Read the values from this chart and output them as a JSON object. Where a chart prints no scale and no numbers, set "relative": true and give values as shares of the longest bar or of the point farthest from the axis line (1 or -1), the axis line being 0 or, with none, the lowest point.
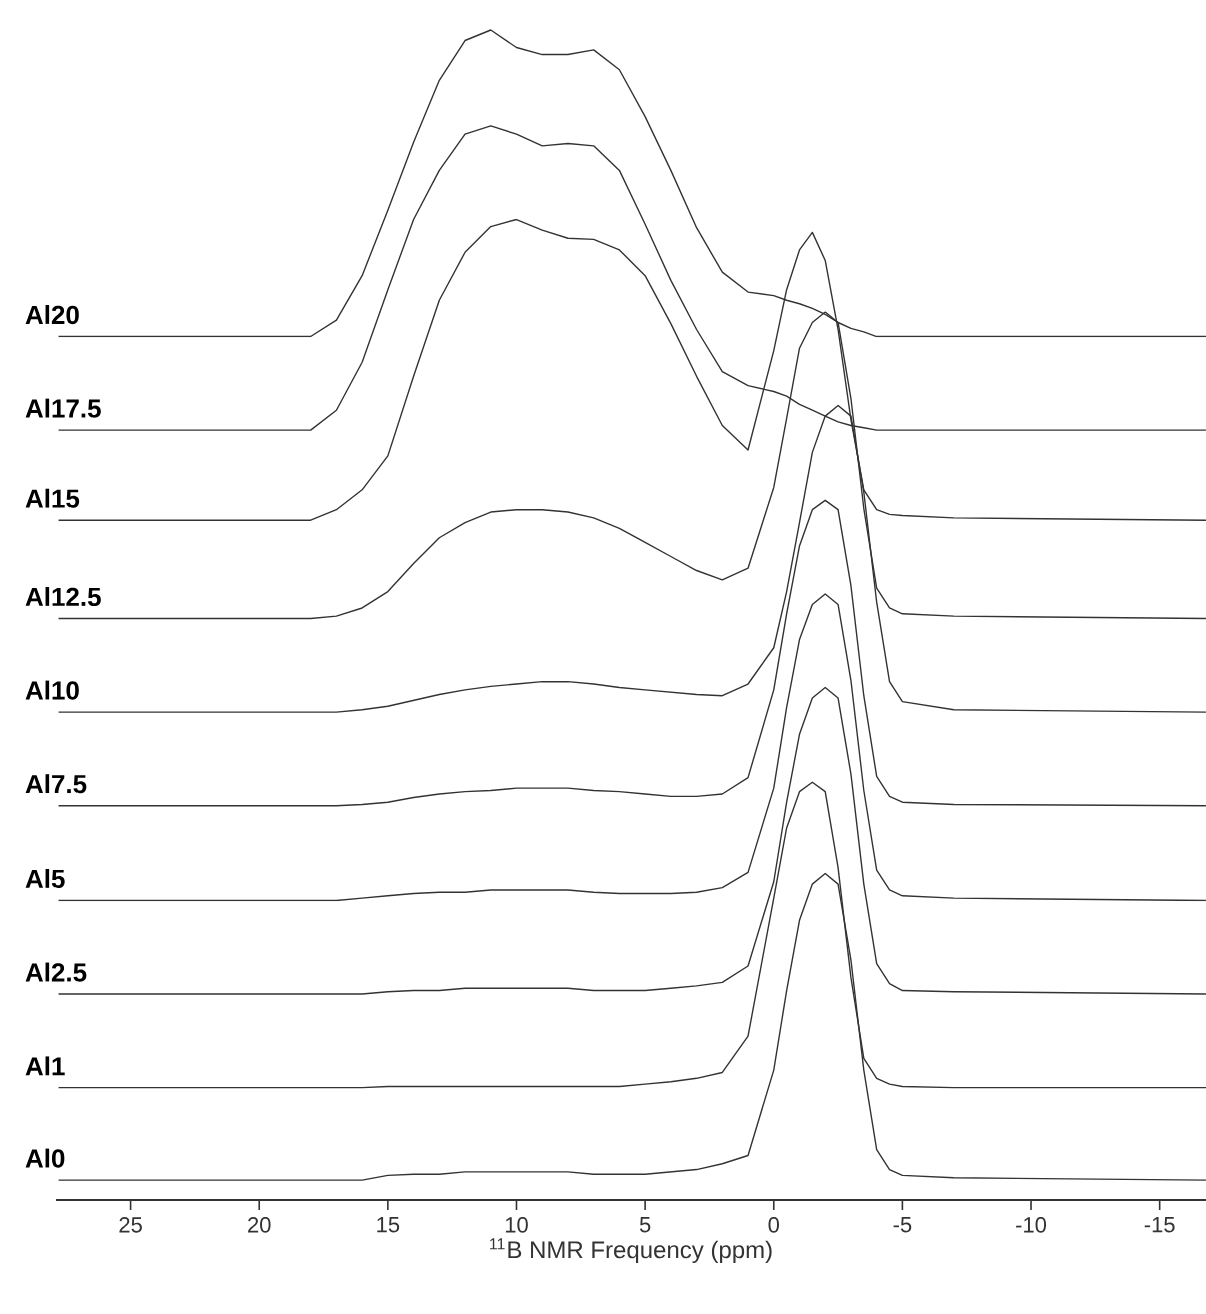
{
  "chart_data": {
    "type": "line",
    "relative": true,
    "xlabel": "$^{11}$B NMR Frequency (ppm)",
    "xlim": [
      27.9,
      -16.8
    ],
    "xticks": [
      25,
      20,
      15,
      10,
      5,
      0,
      -5,
      -10,
      -15
    ],
    "marker": "none",
    "line_style": "solid",
    "x": [
      27.8,
      18,
      17,
      16,
      15,
      14,
      13,
      12,
      11,
      10,
      9,
      8,
      7,
      6,
      5,
      4,
      3,
      2,
      1,
      0,
      -0.5,
      -1,
      -1.5,
      -2,
      -2.5,
      -3,
      -3.5,
      -4,
      -4.5,
      -5,
      -7,
      -16.8
    ],
    "series": [
      {
        "name": "Al20",
        "color": "#333333",
        "values": [
          0.738,
          0.738,
          0.752,
          0.79,
          0.846,
          0.904,
          0.957,
          0.991,
          1,
          0.985,
          0.979,
          0.979,
          0.983,
          0.966,
          0.926,
          0.88,
          0.831,
          0.793,
          0.776,
          0.773,
          0.769,
          0.766,
          0.762,
          0.757,
          0.75,
          0.745,
          0.742,
          0.738,
          0.738,
          0.738,
          0.738,
          0.738
        ]
      },
      {
        "name": "Al17.5",
        "color": "#333333",
        "values": [
          0.658,
          0.658,
          0.675,
          0.716,
          0.778,
          0.838,
          0.88,
          0.911,
          0.918,
          0.911,
          0.901,
          0.903,
          0.901,
          0.88,
          0.834,
          0.786,
          0.744,
          0.708,
          0.696,
          0.691,
          0.687,
          0.68,
          0.675,
          0.67,
          0.665,
          0.662,
          0.66,
          0.658,
          0.658,
          0.658,
          0.658,
          0.658
        ]
      },
      {
        "name": "Al15",
        "color": "#333333",
        "values": [
          0.581,
          0.581,
          0.59,
          0.607,
          0.636,
          0.704,
          0.769,
          0.81,
          0.832,
          0.838,
          0.829,
          0.822,
          0.821,
          0.812,
          0.79,
          0.749,
          0.704,
          0.662,
          0.641,
          0.726,
          0.778,
          0.812,
          0.827,
          0.803,
          0.744,
          0.667,
          0.607,
          0.59,
          0.586,
          0.585,
          0.583,
          0.581
        ]
      },
      {
        "name": "Al12.5",
        "color": "#333333",
        "values": [
          0.497,
          0.497,
          0.499,
          0.506,
          0.52,
          0.544,
          0.566,
          0.579,
          0.588,
          0.59,
          0.59,
          0.588,
          0.583,
          0.574,
          0.562,
          0.55,
          0.538,
          0.53,
          0.54,
          0.609,
          0.668,
          0.728,
          0.75,
          0.759,
          0.75,
          0.685,
          0.591,
          0.523,
          0.506,
          0.501,
          0.499,
          0.497
        ]
      },
      {
        "name": "Al10",
        "color": "#333333",
        "values": [
          0.417,
          0.417,
          0.417,
          0.419,
          0.422,
          0.427,
          0.432,
          0.436,
          0.439,
          0.441,
          0.443,
          0.443,
          0.441,
          0.438,
          0.436,
          0.434,
          0.432,
          0.431,
          0.441,
          0.472,
          0.52,
          0.579,
          0.639,
          0.67,
          0.679,
          0.67,
          0.605,
          0.511,
          0.443,
          0.426,
          0.419,
          0.417
        ]
      },
      {
        "name": "Al7.5",
        "color": "#333333",
        "values": [
          0.337,
          0.337,
          0.337,
          0.338,
          0.34,
          0.344,
          0.347,
          0.349,
          0.35,
          0.352,
          0.352,
          0.352,
          0.35,
          0.349,
          0.347,
          0.345,
          0.345,
          0.347,
          0.361,
          0.436,
          0.501,
          0.559,
          0.59,
          0.598,
          0.59,
          0.525,
          0.431,
          0.362,
          0.345,
          0.34,
          0.338,
          0.337
        ]
      },
      {
        "name": "Al5",
        "color": "#333333",
        "values": [
          0.256,
          0.256,
          0.256,
          0.258,
          0.26,
          0.262,
          0.263,
          0.263,
          0.265,
          0.265,
          0.265,
          0.265,
          0.263,
          0.262,
          0.262,
          0.262,
          0.263,
          0.267,
          0.28,
          0.352,
          0.421,
          0.479,
          0.509,
          0.518,
          0.509,
          0.444,
          0.35,
          0.282,
          0.265,
          0.26,
          0.258,
          0.256
        ]
      },
      {
        "name": "Al2.5",
        "color": "#333333",
        "values": [
          0.176,
          0.176,
          0.176,
          0.176,
          0.178,
          0.179,
          0.179,
          0.181,
          0.181,
          0.181,
          0.181,
          0.181,
          0.179,
          0.179,
          0.179,
          0.181,
          0.183,
          0.186,
          0.2,
          0.272,
          0.34,
          0.398,
          0.429,
          0.438,
          0.429,
          0.364,
          0.27,
          0.202,
          0.185,
          0.179,
          0.178,
          0.176
        ]
      },
      {
        "name": "Al1",
        "color": "#333333",
        "values": [
          0.096,
          0.096,
          0.096,
          0.096,
          0.097,
          0.097,
          0.097,
          0.097,
          0.097,
          0.097,
          0.097,
          0.097,
          0.097,
          0.097,
          0.099,
          0.101,
          0.104,
          0.109,
          0.14,
          0.258,
          0.318,
          0.349,
          0.357,
          0.349,
          0.284,
          0.19,
          0.121,
          0.104,
          0.099,
          0.097,
          0.096,
          0.096
        ]
      },
      {
        "name": "Al0",
        "color": "#333333",
        "values": [
          0.017,
          0.017,
          0.017,
          0.017,
          0.021,
          0.022,
          0.022,
          0.024,
          0.024,
          0.024,
          0.024,
          0.024,
          0.022,
          0.022,
          0.022,
          0.024,
          0.026,
          0.031,
          0.038,
          0.111,
          0.179,
          0.239,
          0.27,
          0.279,
          0.27,
          0.205,
          0.111,
          0.043,
          0.026,
          0.021,
          0.019,
          0.017
        ]
      }
    ]
  }
}
